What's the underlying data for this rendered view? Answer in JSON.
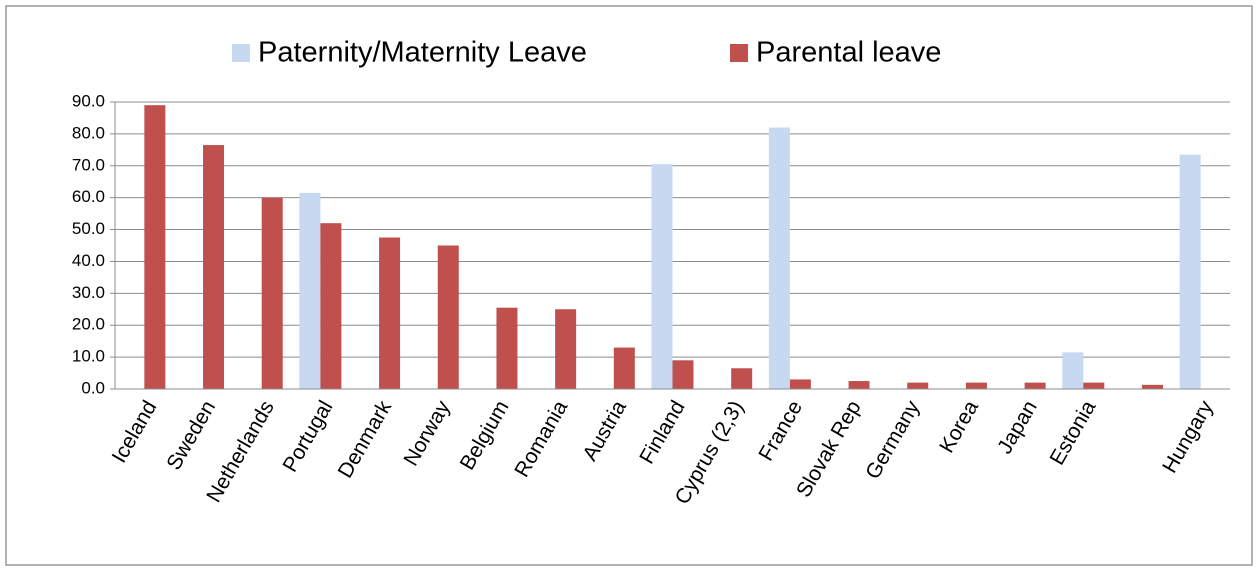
{
  "chart_data": {
    "type": "bar",
    "categories": [
      "Iceland",
      "Sweden",
      "Netherlands",
      "Portugal",
      "Denmark",
      "Norway",
      "Belgium",
      "Romania",
      "Austria",
      "Finland",
      "Cyprus (2,3)",
      "France",
      "Slovak Rep",
      "Germany",
      "Korea",
      "Japan",
      "Estonia",
      null,
      "Hungary"
    ],
    "series": [
      {
        "name": "Paternity/Maternity Leave",
        "color": "#c6d9f1",
        "values": [
          null,
          null,
          null,
          61.5,
          null,
          null,
          null,
          null,
          null,
          70.5,
          null,
          82,
          null,
          null,
          null,
          null,
          11.5,
          null,
          73.5
        ]
      },
      {
        "name": "Parental leave",
        "color": "#c0504d",
        "values": [
          89,
          76.5,
          60,
          52,
          47.5,
          45,
          25.5,
          25,
          13,
          9,
          6.5,
          3,
          2.5,
          2,
          2,
          2,
          2,
          1.3,
          null
        ]
      }
    ],
    "ylim": [
      0,
      90
    ],
    "yticks": [
      {
        "value": 0,
        "label": "0.0"
      },
      {
        "value": 10,
        "label": "10.0"
      },
      {
        "value": 20,
        "label": "20.0"
      },
      {
        "value": 30,
        "label": "30.0"
      },
      {
        "value": 40,
        "label": "40.0"
      },
      {
        "value": 50,
        "label": "50.0"
      },
      {
        "value": 60,
        "label": "60.0"
      },
      {
        "value": 70,
        "label": "70.0"
      },
      {
        "value": 80,
        "label": "80.0"
      },
      {
        "value": 90,
        "label": "90.0"
      }
    ],
    "grid": true,
    "legend": "top"
  }
}
